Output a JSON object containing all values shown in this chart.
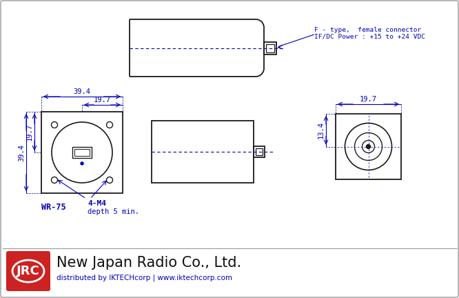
{
  "bg_color": "#ffffff",
  "border_color": "#aaaaaa",
  "draw_color": "#1a1a1a",
  "blue_color": "#0000bb",
  "red_color": "#cc2222",
  "annotation_line1": "F - type,  female connector",
  "annotation_line2": "IF/DC Power : +15 to +24 VDC",
  "label_wr75": "WR-75",
  "label_m4": "4-M4",
  "label_depth": "depth 5 min.",
  "dim_394_top": "39.4",
  "dim_197_top": "19.7",
  "dim_394_left": "39.4",
  "dim_197_left": "19.7",
  "dim_197_right_top": "19.7",
  "dim_134_right": "13.4",
  "footer_company": "New Japan Radio Co., Ltd.",
  "footer_dist": "distributed by IKTECHcorp | www.iktechcorp.com",
  "jrc_text": "JRC"
}
